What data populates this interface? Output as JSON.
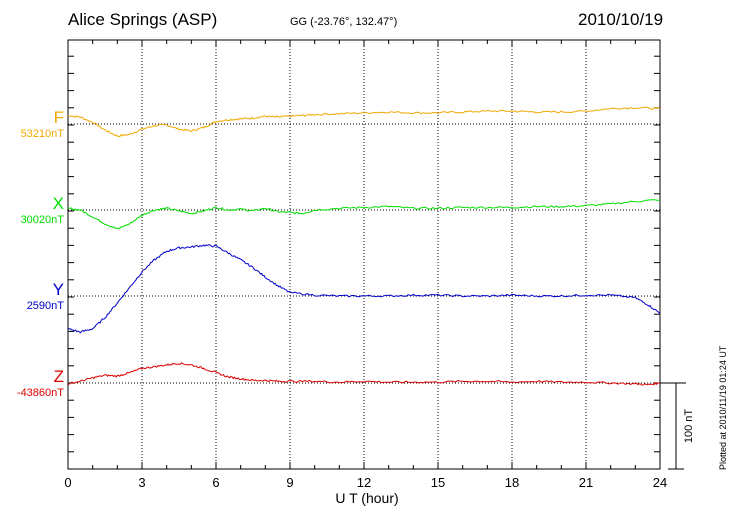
{
  "header": {
    "station": "Alice Springs (ASP)",
    "coords": "GG (-23.76°, 132.47°)",
    "date": "2010/10/19"
  },
  "plotted_note": "Plotted at 2010/11/19 01:24 UT",
  "scale_bar_label": "100 nT",
  "colors": {
    "F": "#f0a800",
    "X": "#00dd00",
    "Y": "#0000cc",
    "Z": "#dd0000"
  },
  "chart_data": {
    "type": "line",
    "title": "Alice Springs (ASP)",
    "xlabel": "U T (hour)",
    "ylabel": "",
    "xlim": [
      0,
      24
    ],
    "xticks": [
      "0",
      "3",
      "6",
      "9",
      "12",
      "15",
      "18",
      "21",
      "24"
    ],
    "grid": true,
    "scale_nT": 100,
    "series": [
      {
        "name": "F",
        "baseline_label": "53210nT",
        "baseline": 53210,
        "x": [
          0,
          0.5,
          1,
          1.5,
          2,
          2.5,
          3,
          3.5,
          4,
          4.5,
          5,
          5.5,
          6,
          6.5,
          7,
          7.5,
          8,
          8.5,
          9,
          9.5,
          10,
          11,
          12,
          13,
          14,
          15,
          16,
          17,
          18,
          19,
          20,
          21,
          22,
          23,
          24
        ],
        "values": [
          53220,
          53218,
          53212,
          53203,
          53196,
          53198,
          53204,
          53208,
          53209,
          53204,
          53202,
          53206,
          53213,
          53215,
          53216,
          53217,
          53219,
          53218,
          53219,
          53220,
          53221,
          53222,
          53223,
          53224,
          53223,
          53223,
          53224,
          53225,
          53225,
          53224,
          53224,
          53225,
          53228,
          53229,
          53228
        ]
      },
      {
        "name": "X",
        "baseline_label": "30020nT",
        "baseline": 30020,
        "x": [
          0,
          0.5,
          1,
          1.5,
          2,
          2.5,
          3,
          3.5,
          4,
          4.5,
          5,
          5.5,
          6,
          6.5,
          7,
          7.5,
          8,
          8.5,
          9,
          9.5,
          10,
          11,
          12,
          13,
          14,
          15,
          16,
          17,
          18,
          19,
          20,
          21,
          22,
          23,
          24
        ],
        "values": [
          30022,
          30020,
          30012,
          30004,
          29998,
          30004,
          30014,
          30020,
          30022,
          30019,
          30016,
          30019,
          30023,
          30020,
          30021,
          30019,
          30022,
          30018,
          30017,
          30016,
          30020,
          30022,
          30023,
          30024,
          30022,
          30022,
          30023,
          30023,
          30023,
          30024,
          30024,
          30025,
          30027,
          30030,
          30032
        ]
      },
      {
        "name": "Y",
        "baseline_label": "2590nT",
        "baseline": 2590,
        "x": [
          0,
          0.5,
          1,
          1.5,
          2,
          2.5,
          3,
          3.5,
          4,
          4.5,
          5,
          5.5,
          6,
          6.5,
          7,
          7.5,
          8,
          8.5,
          9,
          10,
          11,
          12,
          13,
          14,
          15,
          16,
          17,
          18,
          19,
          20,
          21,
          22,
          23,
          23.5,
          24
        ],
        "values": [
          2552,
          2548,
          2552,
          2565,
          2582,
          2600,
          2618,
          2632,
          2642,
          2646,
          2647,
          2649,
          2648,
          2640,
          2632,
          2623,
          2612,
          2602,
          2594,
          2591,
          2590,
          2590,
          2590,
          2591,
          2591,
          2590,
          2590,
          2591,
          2590,
          2590,
          2591,
          2591,
          2588,
          2580,
          2570
        ]
      },
      {
        "name": "Z",
        "baseline_label": "-43860nT",
        "baseline": -43860,
        "x": [
          0,
          0.5,
          1,
          1.5,
          2,
          2.5,
          3,
          3.5,
          4,
          4.5,
          5,
          5.5,
          6,
          6.5,
          7,
          7.5,
          8,
          8.5,
          9,
          10,
          11,
          12,
          13,
          14,
          15,
          16,
          17,
          18,
          19,
          20,
          21,
          22,
          23,
          23.5,
          24
        ],
        "values": [
          -43861,
          -43858,
          -43854,
          -43851,
          -43852,
          -43848,
          -43843,
          -43841,
          -43839,
          -43837,
          -43839,
          -43843,
          -43848,
          -43853,
          -43855,
          -43857,
          -43857,
          -43858,
          -43858,
          -43858,
          -43859,
          -43858,
          -43859,
          -43859,
          -43859,
          -43858,
          -43858,
          -43859,
          -43858,
          -43859,
          -43859,
          -43860,
          -43861,
          -43862,
          -43860
        ]
      }
    ]
  }
}
